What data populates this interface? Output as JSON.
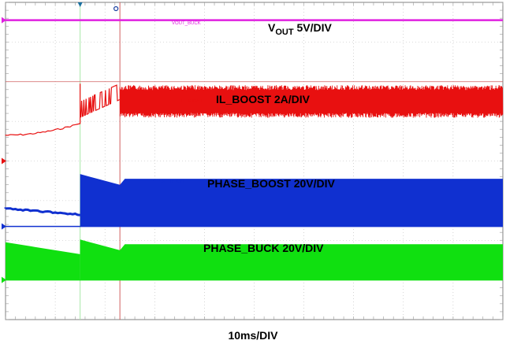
{
  "chart_data": {
    "type": "line",
    "timebase_label": "10ms/DIV",
    "grid": true,
    "grid_divisions": {
      "horizontal": 10,
      "vertical": 8
    },
    "x_unit": "ms",
    "xlim": [
      0,
      100
    ],
    "cursors": [
      {
        "name": "cursor-1",
        "x": 15,
        "color": "#a8e6a8"
      },
      {
        "name": "cursor-2",
        "x": 23,
        "color": "#d06060"
      }
    ],
    "trigger_marker_x": 15,
    "trigger_level_line": {
      "y_div": 2.0,
      "color": "#d06060"
    },
    "series": [
      {
        "name": "VOUT_BUCK",
        "label_main": "V",
        "label_sub": "OUT",
        "label_suffix": " 5V/DIV",
        "color": "#e020e0",
        "baseline_div": 0.45,
        "shape": "flat",
        "level_div": 0.45
      },
      {
        "name": "IL_BOOST",
        "label": "IL_BOOST 2A/DIV",
        "color": "#e81010",
        "baseline_div": 4.0,
        "shape": "inductor_current",
        "start_level_div": 3.35,
        "pre_rise_level_div": 3.05,
        "spike1_div": 2.05,
        "after_spike_div": 2.55,
        "spike2_div": 2.1,
        "steady_top_div": 2.15,
        "steady_bottom_div": 2.85
      },
      {
        "name": "PHASE_BOOST",
        "label": "PHASE_BOOST 20V/DIV",
        "color": "#1030d0",
        "baseline_div": 5.65,
        "shape": "switching",
        "pre_level_div": 5.2,
        "pre_end_level_div": 5.35,
        "pre_thickness_div": 0.1,
        "top_div": 4.45,
        "bottom_div": 5.65
      },
      {
        "name": "PHASE_BUCK",
        "label": "PHASE_BUCK 20V/DIV",
        "color": "#10e010",
        "baseline_div": 7.0,
        "shape": "switching",
        "pre_top_div": 6.05,
        "pre_end_top_div": 6.35,
        "top_div": 6.1,
        "bottom_div": 7.0
      }
    ]
  }
}
